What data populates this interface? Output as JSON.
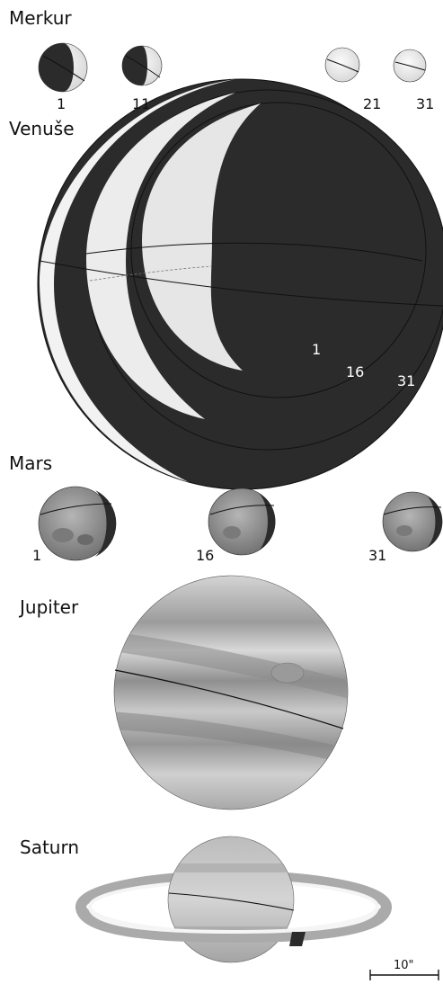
{
  "planets": {
    "mercury": {
      "name": "Merkur",
      "days": [
        "1",
        "11",
        "21",
        "31"
      ]
    },
    "venus": {
      "name": "Venuše",
      "days": [
        "1",
        "16",
        "31"
      ]
    },
    "mars": {
      "name": "Mars",
      "days": [
        "1",
        "16",
        "31"
      ]
    },
    "jupiter": {
      "name": "Jupiter"
    },
    "saturn": {
      "name": "Saturn"
    }
  },
  "scale": {
    "label": "10\""
  },
  "colors": {
    "dark": "#2b2b2b",
    "light": "#efefef",
    "mars": "#8d8d8d",
    "jupiter": "#bdbdbd",
    "saturn": "#c8c8c8"
  }
}
